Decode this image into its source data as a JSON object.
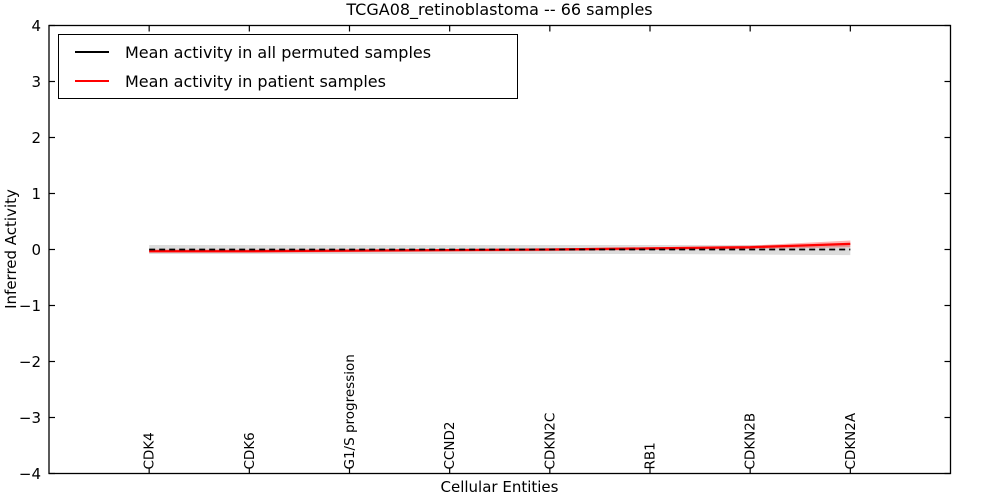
{
  "figure": {
    "title": "TCGA08_retinoblastoma -- 66 samples",
    "xlabel": "Cellular Entities",
    "ylabel": "Inferred Activity"
  },
  "legend": {
    "items": [
      {
        "label": "Mean activity in all permuted samples",
        "color": "#000000"
      },
      {
        "label": "Mean activity in patient samples",
        "color": "#ff0000"
      }
    ]
  },
  "chart_data": {
    "type": "line",
    "title": "TCGA08_retinoblastoma -- 66 samples",
    "xlabel": "Cellular Entities",
    "ylabel": "Inferred Activity",
    "categories": [
      "CDK4",
      "CDK6",
      "G1/S progression",
      "CCND2",
      "CDKN2C",
      "RB1",
      "CDKN2B",
      "CDKN2A"
    ],
    "ylim": [
      -4,
      4
    ],
    "yticks": [
      -4,
      -3,
      -2,
      -1,
      0,
      1,
      2,
      3,
      4
    ],
    "ytick_labels": [
      "−4",
      "−3",
      "−2",
      "−1",
      "0",
      "1",
      "2",
      "3",
      "4"
    ],
    "grid": false,
    "legend_position": "upper left",
    "series": [
      {
        "name": "Mean activity in all permuted samples",
        "color": "#000000",
        "style": "dashed",
        "width": 1.8,
        "values": [
          0.0,
          0.0,
          0.0,
          0.0,
          0.0,
          0.0,
          0.0,
          0.0
        ],
        "band_upper": [
          0.08,
          0.08,
          0.08,
          0.08,
          0.08,
          0.08,
          0.08,
          0.09
        ],
        "band_lower": [
          -0.08,
          -0.08,
          -0.08,
          -0.08,
          -0.08,
          -0.08,
          -0.09,
          -0.1
        ],
        "band_color": "rgba(130,130,130,0.28)",
        "band_name": "permuted-confidence-band"
      },
      {
        "name": "Mean activity in patient samples",
        "color": "#ff0000",
        "style": "solid",
        "width": 2.2,
        "values": [
          -0.03,
          -0.03,
          -0.02,
          -0.01,
          0.0,
          0.02,
          0.04,
          0.1
        ],
        "band_upper": [
          0.0,
          0.0,
          0.0,
          0.01,
          0.02,
          0.04,
          0.07,
          0.16
        ],
        "band_lower": [
          -0.06,
          -0.06,
          -0.05,
          -0.04,
          -0.03,
          -0.01,
          0.01,
          0.04
        ],
        "band_color": "rgba(255,0,0,0.30)",
        "band_name": "patient-confidence-band"
      }
    ]
  }
}
